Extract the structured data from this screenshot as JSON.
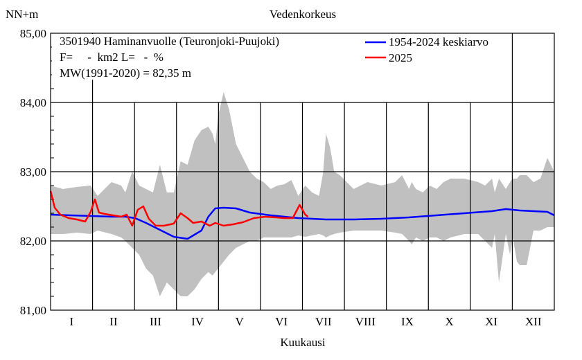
{
  "chart_data": {
    "type": "line",
    "title": "Vedenkorkeus",
    "ylabel": "NN+m",
    "xlabel": "Kuukausi",
    "ylim": [
      81.0,
      85.0
    ],
    "yticks": [
      "81,00",
      "82,00",
      "83,00",
      "84,00",
      "85,00"
    ],
    "ytick_values": [
      81.0,
      82.0,
      83.0,
      84.0,
      85.0
    ],
    "months": [
      "I",
      "II",
      "III",
      "IV",
      "V",
      "VI",
      "VII",
      "VIII",
      "IX",
      "X",
      "XI",
      "XII"
    ],
    "xlim_day": [
      1,
      365
    ],
    "grid": true,
    "info": [
      "3501940 Haminanvuolle (Teuronjoki-Puujoki)",
      "F=     -  km2 L=   -  %",
      "MW(1991-2020) = 82,35 m"
    ],
    "legend_position": "top-right",
    "colors": {
      "band": "#c0c0c0",
      "mean": "#0000ff",
      "y2025": "#ff0000",
      "grid": "#000000"
    },
    "series": [
      {
        "name": "1954-2024 keskiarvo",
        "color": "#0000ff",
        "x": [
          1,
          15,
          30,
          45,
          55,
          62,
          70,
          80,
          90,
          100,
          110,
          115,
          120,
          126,
          135,
          145,
          160,
          180,
          200,
          220,
          240,
          260,
          280,
          300,
          320,
          330,
          340,
          350,
          360,
          365
        ],
        "values": [
          82.38,
          82.37,
          82.36,
          82.35,
          82.35,
          82.33,
          82.26,
          82.16,
          82.06,
          82.03,
          82.15,
          82.35,
          82.47,
          82.48,
          82.47,
          82.41,
          82.37,
          82.33,
          82.31,
          82.31,
          82.32,
          82.34,
          82.37,
          82.4,
          82.43,
          82.46,
          82.44,
          82.43,
          82.42,
          82.37
        ]
      },
      {
        "name": "2025",
        "color": "#ff0000",
        "x": [
          1,
          4,
          8,
          14,
          20,
          26,
          30,
          33,
          36,
          40,
          46,
          52,
          56,
          60,
          64,
          68,
          72,
          77,
          83,
          90,
          95,
          100,
          104,
          110,
          116,
          120,
          126,
          133,
          140,
          148,
          156,
          164,
          170,
          176,
          181,
          183,
          185,
          187
        ],
        "values": [
          82.72,
          82.48,
          82.38,
          82.33,
          82.31,
          82.28,
          82.42,
          82.6,
          82.41,
          82.39,
          82.37,
          82.35,
          82.38,
          82.22,
          82.45,
          82.5,
          82.32,
          82.22,
          82.22,
          82.25,
          82.4,
          82.33,
          82.26,
          82.28,
          82.22,
          82.26,
          82.22,
          82.24,
          82.27,
          82.33,
          82.35,
          82.34,
          82.33,
          82.33,
          82.52,
          82.45,
          82.38,
          82.35
        ]
      },
      {
        "name": "band",
        "color": "#c0c0c0",
        "x": [
          1,
          10,
          20,
          30,
          35,
          45,
          52,
          55,
          60,
          65,
          70,
          75,
          80,
          85,
          90,
          95,
          100,
          105,
          110,
          115,
          118,
          120,
          122,
          126,
          130,
          135,
          140,
          145,
          150,
          155,
          160,
          165,
          170,
          175,
          180,
          185,
          190,
          195,
          198,
          200,
          203,
          206,
          210,
          220,
          230,
          240,
          250,
          255,
          260,
          262,
          265,
          270,
          275,
          280,
          285,
          290,
          300,
          310,
          315,
          320,
          322,
          325,
          330,
          333,
          335,
          338,
          340,
          345,
          350,
          355,
          360,
          365
        ],
        "max": [
          82.8,
          82.75,
          82.78,
          82.8,
          82.65,
          82.85,
          82.8,
          82.7,
          83.0,
          82.8,
          82.75,
          82.7,
          83.1,
          82.7,
          82.7,
          83.15,
          83.1,
          83.45,
          83.6,
          83.65,
          83.55,
          83.4,
          83.8,
          84.15,
          83.9,
          83.4,
          83.2,
          83.0,
          82.9,
          82.85,
          82.75,
          82.8,
          82.82,
          82.88,
          82.65,
          82.8,
          82.7,
          82.65,
          83.0,
          83.55,
          83.35,
          83.0,
          82.95,
          82.75,
          82.85,
          82.8,
          82.85,
          82.95,
          82.75,
          82.85,
          82.75,
          82.7,
          82.8,
          82.75,
          82.85,
          82.9,
          82.9,
          82.85,
          82.8,
          82.9,
          82.7,
          82.9,
          82.75,
          82.85,
          82.9,
          82.9,
          82.95,
          82.95,
          82.85,
          82.9,
          83.2,
          83.0
        ],
        "min": [
          82.1,
          82.1,
          82.12,
          82.1,
          82.15,
          82.1,
          82.05,
          82.0,
          81.9,
          81.8,
          81.6,
          81.5,
          81.2,
          81.4,
          81.3,
          81.2,
          81.2,
          81.3,
          81.45,
          81.55,
          81.5,
          81.55,
          81.6,
          81.7,
          81.8,
          81.9,
          81.95,
          82.0,
          82.0,
          82.05,
          82.05,
          82.05,
          82.05,
          82.05,
          82.08,
          82.06,
          82.08,
          82.1,
          82.08,
          82.05,
          82.08,
          82.1,
          82.12,
          82.15,
          82.15,
          82.15,
          82.12,
          82.1,
          82.0,
          81.95,
          82.05,
          82.0,
          82.05,
          82.05,
          82.0,
          82.05,
          82.1,
          82.1,
          82.0,
          81.9,
          82.1,
          81.4,
          82.1,
          81.8,
          82.05,
          81.7,
          81.65,
          81.65,
          82.15,
          82.15,
          82.2,
          82.2
        ]
      }
    ]
  }
}
